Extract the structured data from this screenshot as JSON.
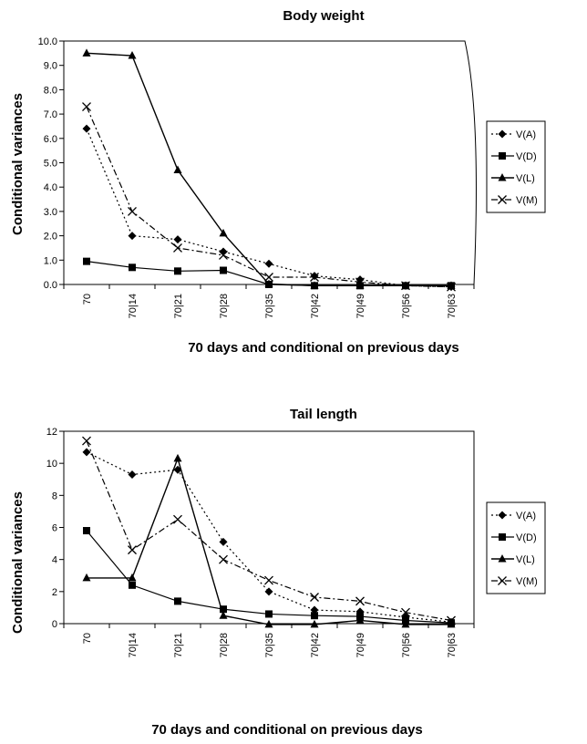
{
  "chart_data": [
    {
      "type": "line",
      "title": "Body weight",
      "xlabel": "70 days and conditional on previous days",
      "ylabel": "Conditional variances",
      "categories": [
        "70",
        "70|14",
        "70|21",
        "70|28",
        "70|35",
        "70|42",
        "70|49",
        "70|56",
        "70|63"
      ],
      "ylim": [
        0,
        10
      ],
      "yticks": [
        "0.0",
        "1.0",
        "2.0",
        "3.0",
        "4.0",
        "5.0",
        "6.0",
        "7.0",
        "8.0",
        "9.0",
        "10.0"
      ],
      "grid": false,
      "legend_position": "right",
      "series": [
        {
          "name": "V(A)",
          "values": [
            6.4,
            2.0,
            1.85,
            1.35,
            0.85,
            0.35,
            0.2,
            -0.05,
            -0.1
          ]
        },
        {
          "name": "V(D)",
          "values": [
            0.95,
            0.7,
            0.55,
            0.58,
            0.0,
            -0.05,
            -0.05,
            -0.05,
            -0.05
          ]
        },
        {
          "name": "V(L)",
          "values": [
            9.5,
            9.4,
            4.7,
            2.1,
            0.02,
            -0.05,
            -0.05,
            -0.05,
            -0.05
          ]
        },
        {
          "name": "V(M)",
          "values": [
            7.3,
            3.0,
            1.5,
            1.2,
            0.3,
            0.3,
            0.1,
            -0.05,
            -0.1
          ]
        }
      ]
    },
    {
      "type": "line",
      "title": "Tail length",
      "xlabel": "70 days and conditional on previous days",
      "ylabel": "Conditional variances",
      "categories": [
        "70",
        "70|14",
        "70|21",
        "70|28",
        "70|35",
        "70|42",
        "70|49",
        "70|56",
        "70|63"
      ],
      "ylim": [
        0,
        12
      ],
      "yticks": [
        "0",
        "2",
        "4",
        "6",
        "8",
        "10",
        "12"
      ],
      "grid": false,
      "legend_position": "right",
      "series": [
        {
          "name": "V(A)",
          "values": [
            10.7,
            9.3,
            9.6,
            5.1,
            2.0,
            0.85,
            0.75,
            0.4,
            0.1
          ]
        },
        {
          "name": "V(D)",
          "values": [
            5.8,
            2.4,
            1.4,
            0.9,
            0.6,
            0.5,
            0.45,
            0.2,
            0.05
          ]
        },
        {
          "name": "V(L)",
          "values": [
            2.85,
            2.85,
            10.3,
            0.5,
            -0.05,
            -0.05,
            0.2,
            -0.05,
            -0.05
          ]
        },
        {
          "name": "V(M)",
          "values": [
            11.4,
            4.6,
            6.5,
            4.0,
            2.7,
            1.65,
            1.4,
            0.7,
            0.2
          ]
        }
      ]
    }
  ]
}
